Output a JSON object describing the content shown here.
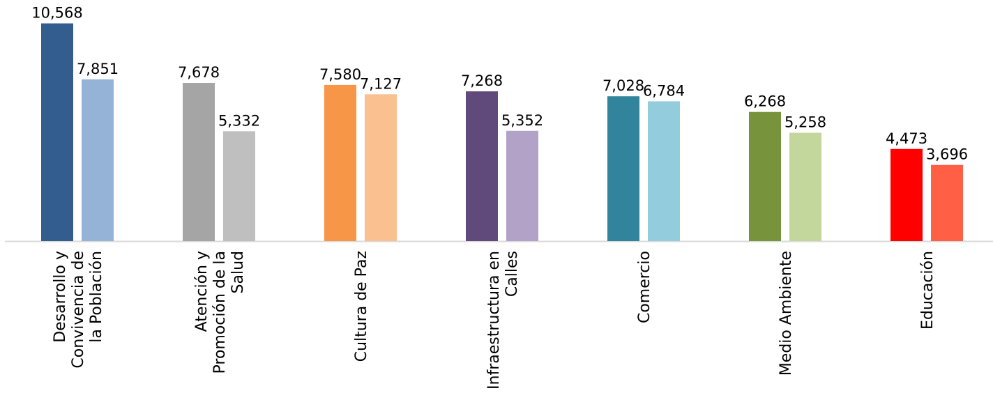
{
  "chart_data": {
    "type": "bar",
    "title": "",
    "xlabel": "",
    "ylabel": "",
    "grid": false,
    "legend": "none",
    "ylim": [
      0,
      11500
    ],
    "categories": [
      {
        "lines": [
          "Desarrollo y",
          "Convivencia de",
          "la Población"
        ]
      },
      {
        "lines": [
          "Atención y",
          "Promoción de la",
          "Salud"
        ]
      },
      {
        "lines": [
          "Cultura de Paz"
        ]
      },
      {
        "lines": [
          "Infraestructura en",
          "Calles"
        ]
      },
      {
        "lines": [
          "Comercio"
        ]
      },
      {
        "lines": [
          "Medio Ambiente"
        ]
      },
      {
        "lines": [
          "Educación"
        ]
      }
    ],
    "series": [
      {
        "values": [
          10568,
          7678,
          7580,
          7268,
          7028,
          6268,
          4473
        ],
        "value_labels": [
          "10,568",
          "7,678",
          "7,580",
          "7,268",
          "7,028",
          "6,268",
          "4,473"
        ],
        "colors": [
          "#345D8F",
          "#A5A5A5",
          "#F79646",
          "#604A7B",
          "#31849B",
          "#77933C",
          "#FF0000"
        ]
      },
      {
        "values": [
          7851,
          5332,
          7127,
          5352,
          6784,
          5258,
          3696
        ],
        "value_labels": [
          "7,851",
          "5,332",
          "7,127",
          "5,352",
          "6,784",
          "5,258",
          "3,696"
        ],
        "colors": [
          "#95B3D7",
          "#BFBFBF",
          "#FAC090",
          "#B3A2C7",
          "#93CDDD",
          "#C3D69B",
          "#FF5F45"
        ]
      }
    ],
    "axis_color": "#D9D9D9"
  }
}
